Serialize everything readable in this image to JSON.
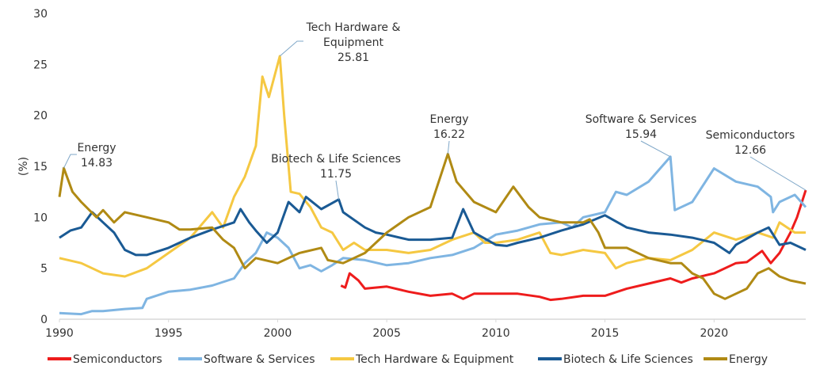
{
  "chart_data": {
    "type": "line",
    "title": "",
    "xlabel": "",
    "ylabel": "(%)",
    "xlim": [
      1990,
      2024.2
    ],
    "ylim": [
      0,
      30
    ],
    "x_ticks": [
      "1990",
      "1995",
      "2000",
      "2005",
      "2010",
      "2015",
      "2020"
    ],
    "y_ticks": [
      "0",
      "5",
      "10",
      "15",
      "20",
      "25",
      "30"
    ],
    "grid": false,
    "legend_position": "bottom",
    "series": [
      {
        "name": "Semiconductors",
        "color": "#ee1c1c",
        "points": [
          [
            2002.9,
            3.3
          ],
          [
            2003.1,
            3.1
          ],
          [
            2003.3,
            4.5
          ],
          [
            2003.7,
            3.8
          ],
          [
            2004,
            3.0
          ],
          [
            2005,
            3.2
          ],
          [
            2006,
            2.7
          ],
          [
            2007,
            2.3
          ],
          [
            2008,
            2.5
          ],
          [
            2008.5,
            2.0
          ],
          [
            2009,
            2.5
          ],
          [
            2010,
            2.5
          ],
          [
            2011,
            2.5
          ],
          [
            2012,
            2.2
          ],
          [
            2012.5,
            1.9
          ],
          [
            2013,
            2.0
          ],
          [
            2014,
            2.3
          ],
          [
            2015,
            2.3
          ],
          [
            2016,
            3.0
          ],
          [
            2017,
            3.5
          ],
          [
            2018,
            4.0
          ],
          [
            2018.5,
            3.6
          ],
          [
            2019,
            4.0
          ],
          [
            2020,
            4.5
          ],
          [
            2021,
            5.5
          ],
          [
            2021.5,
            5.6
          ],
          [
            2022.2,
            6.7
          ],
          [
            2022.6,
            5.5
          ],
          [
            2023,
            6.5
          ],
          [
            2023.5,
            8.5
          ],
          [
            2023.8,
            10.0
          ],
          [
            2024.2,
            12.66
          ]
        ]
      },
      {
        "name": "Software & Services",
        "color": "#7fb5e2",
        "points": [
          [
            1990,
            0.6
          ],
          [
            1991,
            0.5
          ],
          [
            1991.5,
            0.8
          ],
          [
            1992,
            0.8
          ],
          [
            1993,
            1.0
          ],
          [
            1993.8,
            1.1
          ],
          [
            1994,
            2.0
          ],
          [
            1995,
            2.7
          ],
          [
            1996,
            2.9
          ],
          [
            1997,
            3.3
          ],
          [
            1998,
            4.0
          ],
          [
            1998.5,
            5.5
          ],
          [
            1999,
            6.5
          ],
          [
            1999.5,
            8.5
          ],
          [
            2000,
            8.0
          ],
          [
            2000.5,
            7.0
          ],
          [
            2001,
            5.0
          ],
          [
            2001.5,
            5.3
          ],
          [
            2002,
            4.7
          ],
          [
            2002.5,
            5.3
          ],
          [
            2003,
            6.0
          ],
          [
            2004,
            5.8
          ],
          [
            2005,
            5.3
          ],
          [
            2006,
            5.5
          ],
          [
            2007,
            6.0
          ],
          [
            2008,
            6.3
          ],
          [
            2009,
            7.0
          ],
          [
            2010,
            8.3
          ],
          [
            2011,
            8.7
          ],
          [
            2012,
            9.3
          ],
          [
            2013,
            9.5
          ],
          [
            2013.5,
            9.0
          ],
          [
            2014,
            10.0
          ],
          [
            2015,
            10.5
          ],
          [
            2015.5,
            12.5
          ],
          [
            2016,
            12.2
          ],
          [
            2017,
            13.5
          ],
          [
            2018,
            15.94
          ],
          [
            2018.2,
            10.7
          ],
          [
            2019,
            11.5
          ],
          [
            2020,
            14.8
          ],
          [
            2021,
            13.5
          ],
          [
            2022,
            13.0
          ],
          [
            2022.6,
            12.0
          ],
          [
            2022.7,
            10.5
          ],
          [
            2023,
            11.5
          ],
          [
            2023.7,
            12.2
          ],
          [
            2024.2,
            11.0
          ]
        ]
      },
      {
        "name": "Tech Hardware & Equipment",
        "color": "#f5c842",
        "points": [
          [
            1990,
            6.0
          ],
          [
            1991,
            5.5
          ],
          [
            1992,
            4.5
          ],
          [
            1993,
            4.2
          ],
          [
            1994,
            5.0
          ],
          [
            1995,
            6.5
          ],
          [
            1996,
            8.0
          ],
          [
            1997,
            10.5
          ],
          [
            1997.5,
            9.0
          ],
          [
            1998,
            12.0
          ],
          [
            1998.5,
            14.0
          ],
          [
            1999,
            17.0
          ],
          [
            1999.3,
            23.8
          ],
          [
            1999.6,
            21.8
          ],
          [
            2000.1,
            25.81
          ],
          [
            2000.3,
            20.0
          ],
          [
            2000.6,
            12.5
          ],
          [
            2001,
            12.3
          ],
          [
            2001.5,
            11.0
          ],
          [
            2002,
            9.0
          ],
          [
            2002.5,
            8.5
          ],
          [
            2003,
            6.8
          ],
          [
            2003.5,
            7.5
          ],
          [
            2004,
            6.8
          ],
          [
            2005,
            6.8
          ],
          [
            2006,
            6.5
          ],
          [
            2007,
            6.8
          ],
          [
            2008,
            7.8
          ],
          [
            2009,
            8.5
          ],
          [
            2009.5,
            7.5
          ],
          [
            2010,
            7.5
          ],
          [
            2011,
            7.8
          ],
          [
            2012,
            8.5
          ],
          [
            2012.5,
            6.5
          ],
          [
            2013,
            6.3
          ],
          [
            2014,
            6.8
          ],
          [
            2015,
            6.5
          ],
          [
            2015.5,
            5.0
          ],
          [
            2016,
            5.5
          ],
          [
            2017,
            6.0
          ],
          [
            2018,
            5.8
          ],
          [
            2019,
            6.8
          ],
          [
            2020,
            8.5
          ],
          [
            2021,
            7.8
          ],
          [
            2022,
            8.5
          ],
          [
            2022.7,
            8.0
          ],
          [
            2023,
            9.5
          ],
          [
            2023.7,
            8.5
          ],
          [
            2024.2,
            8.5
          ]
        ]
      },
      {
        "name": "Biotech & Life Sciences",
        "color": "#1a5a94",
        "points": [
          [
            1990,
            8.0
          ],
          [
            1990.5,
            8.7
          ],
          [
            1991,
            9.0
          ],
          [
            1991.5,
            10.5
          ],
          [
            1992,
            9.5
          ],
          [
            1992.5,
            8.5
          ],
          [
            1993,
            6.8
          ],
          [
            1993.5,
            6.3
          ],
          [
            1994,
            6.3
          ],
          [
            1995,
            7.0
          ],
          [
            1996,
            8.0
          ],
          [
            1997,
            8.8
          ],
          [
            1998,
            9.5
          ],
          [
            1998.3,
            10.8
          ],
          [
            1998.7,
            9.5
          ],
          [
            1999,
            8.7
          ],
          [
            1999.5,
            7.5
          ],
          [
            2000,
            8.5
          ],
          [
            2000.5,
            11.5
          ],
          [
            2001,
            10.5
          ],
          [
            2001.3,
            12.0
          ],
          [
            2002,
            10.8
          ],
          [
            2002.8,
            11.75
          ],
          [
            2003,
            10.5
          ],
          [
            2004,
            9.0
          ],
          [
            2004.5,
            8.5
          ],
          [
            2005,
            8.3
          ],
          [
            2006,
            7.8
          ],
          [
            2007,
            7.8
          ],
          [
            2008,
            8.0
          ],
          [
            2008.5,
            10.8
          ],
          [
            2009,
            8.5
          ],
          [
            2010,
            7.3
          ],
          [
            2010.5,
            7.2
          ],
          [
            2011,
            7.5
          ],
          [
            2012,
            8.0
          ],
          [
            2013,
            8.7
          ],
          [
            2014,
            9.3
          ],
          [
            2015,
            10.2
          ],
          [
            2016,
            9.0
          ],
          [
            2017,
            8.5
          ],
          [
            2018,
            8.3
          ],
          [
            2019,
            8.0
          ],
          [
            2020,
            7.5
          ],
          [
            2020.7,
            6.5
          ],
          [
            2021,
            7.3
          ],
          [
            2022,
            8.5
          ],
          [
            2022.5,
            9.0
          ],
          [
            2023,
            7.3
          ],
          [
            2023.5,
            7.5
          ],
          [
            2024.2,
            6.8
          ]
        ]
      },
      {
        "name": "Energy",
        "color": "#b08a14",
        "points": [
          [
            1990,
            12.0
          ],
          [
            1990.2,
            14.83
          ],
          [
            1990.6,
            12.5
          ],
          [
            1991,
            11.5
          ],
          [
            1991.7,
            10.0
          ],
          [
            1992,
            10.7
          ],
          [
            1992.5,
            9.5
          ],
          [
            1993,
            10.5
          ],
          [
            1994,
            10.0
          ],
          [
            1995,
            9.5
          ],
          [
            1995.5,
            8.8
          ],
          [
            1996,
            8.8
          ],
          [
            1997,
            9.0
          ],
          [
            1997.5,
            7.8
          ],
          [
            1998,
            7.0
          ],
          [
            1998.5,
            5.0
          ],
          [
            1999,
            6.0
          ],
          [
            2000,
            5.5
          ],
          [
            2001,
            6.5
          ],
          [
            2002,
            7.0
          ],
          [
            2002.3,
            5.8
          ],
          [
            2003,
            5.5
          ],
          [
            2004,
            6.5
          ],
          [
            2005,
            8.5
          ],
          [
            2006,
            10.0
          ],
          [
            2007,
            11.0
          ],
          [
            2007.8,
            16.22
          ],
          [
            2008.2,
            13.5
          ],
          [
            2009,
            11.5
          ],
          [
            2010,
            10.5
          ],
          [
            2010.8,
            13.0
          ],
          [
            2011.5,
            11.0
          ],
          [
            2012,
            10.0
          ],
          [
            2013,
            9.5
          ],
          [
            2014,
            9.5
          ],
          [
            2014.3,
            9.8
          ],
          [
            2014.7,
            8.5
          ],
          [
            2015,
            7.0
          ],
          [
            2016,
            7.0
          ],
          [
            2017,
            6.0
          ],
          [
            2018,
            5.5
          ],
          [
            2018.5,
            5.5
          ],
          [
            2019,
            4.5
          ],
          [
            2019.5,
            4.0
          ],
          [
            2020,
            2.5
          ],
          [
            2020.5,
            2.0
          ],
          [
            2021,
            2.5
          ],
          [
            2021.5,
            3.0
          ],
          [
            2022,
            4.5
          ],
          [
            2022.5,
            5.0
          ],
          [
            2023,
            4.2
          ],
          [
            2023.5,
            3.8
          ],
          [
            2024.2,
            3.5
          ]
        ]
      }
    ],
    "annotations": [
      {
        "series": "Energy",
        "lines": [
          "Energy",
          "14.83"
        ],
        "x": 1990.2,
        "y": 14.83
      },
      {
        "series": "Tech Hardware & Equipment",
        "lines": [
          "Tech Hardware &",
          "Equipment",
          "25.81"
        ],
        "x": 2000.1,
        "y": 25.81
      },
      {
        "series": "Biotech & Life Sciences",
        "lines": [
          "Biotech & Life Sciences",
          "11.75"
        ],
        "x": 2002.8,
        "y": 11.75
      },
      {
        "series": "Energy",
        "lines": [
          "Energy",
          "16.22"
        ],
        "x": 2007.8,
        "y": 16.22
      },
      {
        "series": "Software & Services",
        "lines": [
          "Software & Services",
          "15.94"
        ],
        "x": 2018,
        "y": 15.94
      },
      {
        "series": "Semiconductors",
        "lines": [
          "Semiconductors",
          "12.66"
        ],
        "x": 2024.2,
        "y": 12.66
      }
    ]
  }
}
